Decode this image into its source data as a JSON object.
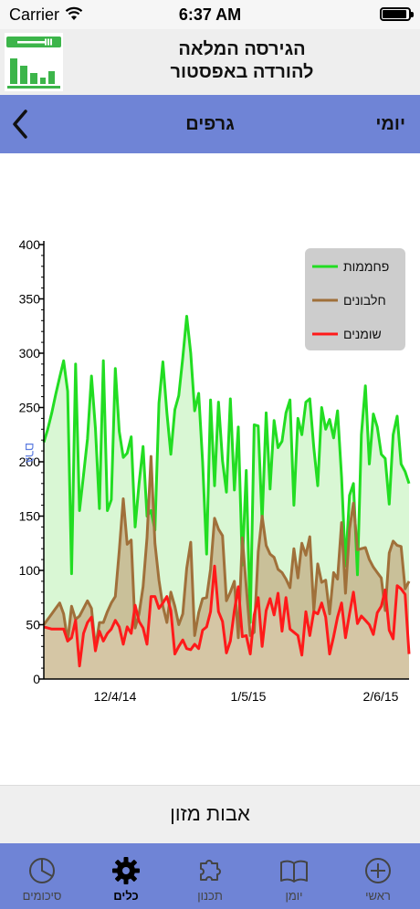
{
  "status": {
    "carrier": "Carrier",
    "time": "6:37 AM"
  },
  "promo": {
    "line1": "הגירסה המלאה",
    "line2": "להורדה באפסטור"
  },
  "nav": {
    "title": "גרפים",
    "period": "יומי"
  },
  "chart_data": {
    "type": "area",
    "ylabel": "גרם",
    "ylim": [
      0,
      400
    ],
    "yticks": [
      0,
      50,
      100,
      150,
      200,
      250,
      300,
      350,
      400
    ],
    "xticks": [
      "12/4/14",
      "1/5/15",
      "2/6/15"
    ],
    "legend_position": "top-right",
    "series": [
      {
        "name": "פחממות",
        "color": "#22dd22",
        "fill": "#d9f7d4",
        "values": [
          218,
          230,
          245,
          262,
          278,
          293,
          265,
          97,
          290,
          155,
          188,
          221,
          279,
          231,
          157,
          293,
          155,
          165,
          286,
          228,
          204,
          208,
          223,
          140,
          180,
          214,
          150,
          155,
          137,
          254,
          292,
          245,
          207,
          248,
          261,
          296,
          334,
          300,
          247,
          263,
          200,
          115,
          257,
          178,
          255,
          201,
          172,
          258,
          174,
          232,
          105,
          192,
          52,
          234,
          233,
          145,
          245,
          175,
          238,
          213,
          219,
          245,
          257,
          160,
          240,
          225,
          255,
          258,
          213,
          178,
          250,
          230,
          239,
          222,
          247,
          186,
          104,
          169,
          180,
          96,
          225,
          270,
          198,
          244,
          232,
          207,
          203,
          161,
          225,
          242,
          198,
          191,
          180
        ]
      },
      {
        "name": "חלבונים",
        "color": "#a0703a",
        "fill": "#c4b18a",
        "values": [
          50,
          55,
          60,
          65,
          70,
          60,
          35,
          67,
          55,
          58,
          65,
          72,
          65,
          29,
          52,
          52,
          62,
          70,
          76,
          118,
          166,
          124,
          128,
          47,
          60,
          85,
          130,
          205,
          125,
          91,
          67,
          52,
          80,
          67,
          50,
          60,
          102,
          126,
          40,
          61,
          74,
          75,
          101,
          148,
          138,
          132,
          72,
          80,
          90,
          38,
          130,
          85,
          40,
          43,
          117,
          150,
          123,
          115,
          112,
          101,
          98,
          92,
          84,
          120,
          93,
          125,
          114,
          131,
          63,
          106,
          89,
          91,
          60,
          98,
          92,
          144,
          79,
          138,
          162,
          119,
          120,
          121,
          110,
          103,
          98,
          93,
          63,
          116,
          127,
          123,
          122,
          83,
          90
        ]
      },
      {
        "name": "שומנים",
        "color": "#ff1a1a",
        "fill": "#d8c7a8",
        "values": [
          48,
          47,
          46,
          46,
          46,
          46,
          35,
          38,
          54,
          12,
          42,
          52,
          57,
          26,
          44,
          35,
          42,
          46,
          54,
          48,
          32,
          48,
          42,
          68,
          53,
          47,
          32,
          76,
          76,
          65,
          70,
          76,
          63,
          23,
          30,
          36,
          28,
          27,
          32,
          28,
          45,
          48,
          62,
          104,
          62,
          53,
          24,
          35,
          63,
          85,
          39,
          40,
          23,
          59,
          75,
          30,
          63,
          74,
          59,
          79,
          44,
          75,
          46,
          43,
          40,
          22,
          62,
          40,
          62,
          60,
          70,
          57,
          23,
          39,
          57,
          70,
          38,
          60,
          80,
          51,
          58,
          54,
          50,
          41,
          61,
          67,
          82,
          45,
          37,
          86,
          83,
          78,
          23
        ]
      }
    ]
  },
  "actions": {
    "main_button": "אבות מזון"
  },
  "tabs": [
    {
      "label": "סיכומים",
      "icon": "pie-chart-icon"
    },
    {
      "label": "כלים",
      "icon": "gear-icon"
    },
    {
      "label": "תכנון",
      "icon": "puzzle-icon"
    },
    {
      "label": "יומן",
      "icon": "book-icon"
    },
    {
      "label": "ראשי",
      "icon": "plus-circle-icon"
    }
  ]
}
